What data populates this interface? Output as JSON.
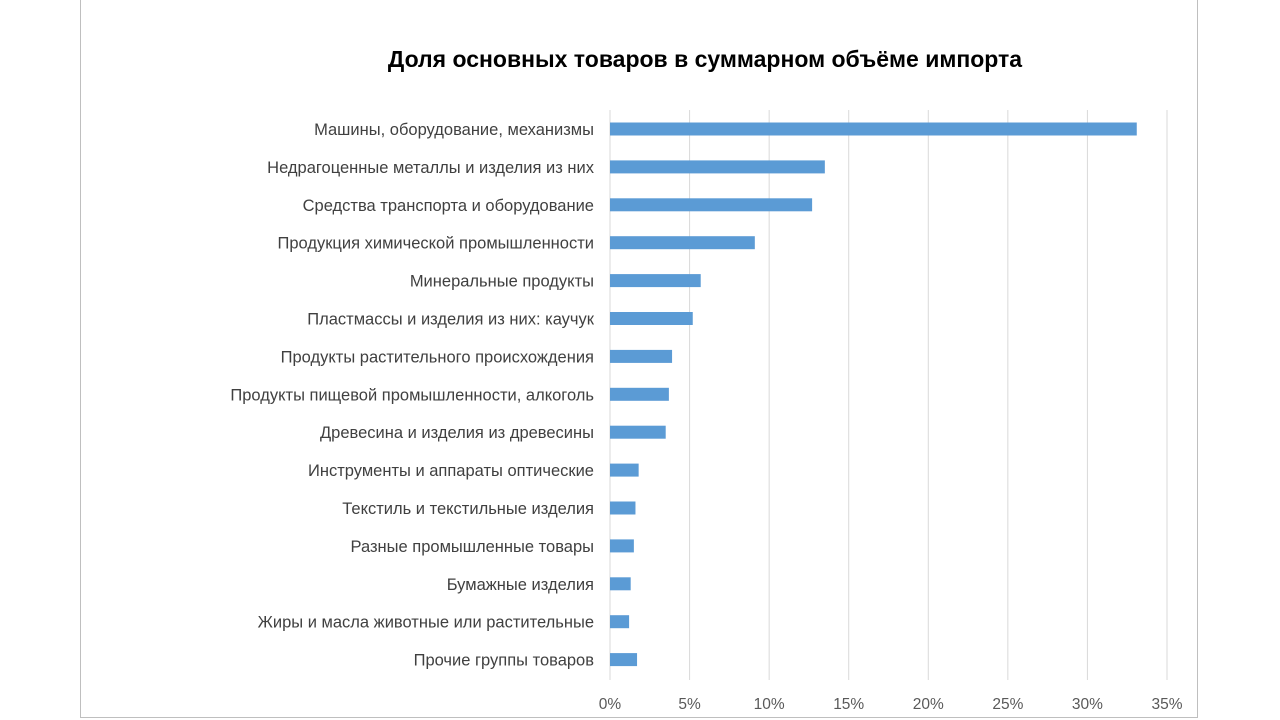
{
  "chart_data": {
    "type": "bar",
    "orientation": "horizontal",
    "title": "Доля основных товаров в суммарном объёме импорта",
    "xlabel": "",
    "ylabel": "",
    "categories": [
      "Машины,  оборудование, механизмы",
      "Недрагоценные металлы и изделия из них",
      "Средства транспорта и оборудование",
      "Продукция химической промышленности",
      "Минеральные продукты",
      "Пластмассы и изделия из них: каучук",
      "Продукты растительного происхождения",
      "Продукты пищевой промышленности, алкоголь",
      "Древесина и изделия из древесины",
      "Инструменты и аппараты  оптические",
      "Текстиль и текстильные изделия",
      "Разные промышленные товары",
      "Бумажные изделия",
      "Жиры и масла животные или растительные",
      "Прочие группы товаров"
    ],
    "values": [
      33.1,
      13.5,
      12.7,
      9.1,
      5.7,
      5.2,
      3.9,
      3.7,
      3.5,
      1.8,
      1.6,
      1.5,
      1.3,
      1.2,
      1.7
    ],
    "xlim": [
      0,
      35
    ],
    "xticks": [
      0,
      5,
      10,
      15,
      20,
      25,
      30,
      35
    ],
    "xtick_labels": [
      "0%",
      "5%",
      "10%",
      "15%",
      "20%",
      "25%",
      "30%",
      "35%"
    ],
    "grid": "vertical",
    "legend": "none",
    "bar_color": "#5b9bd5",
    "grid_color": "#d9d9d9"
  }
}
